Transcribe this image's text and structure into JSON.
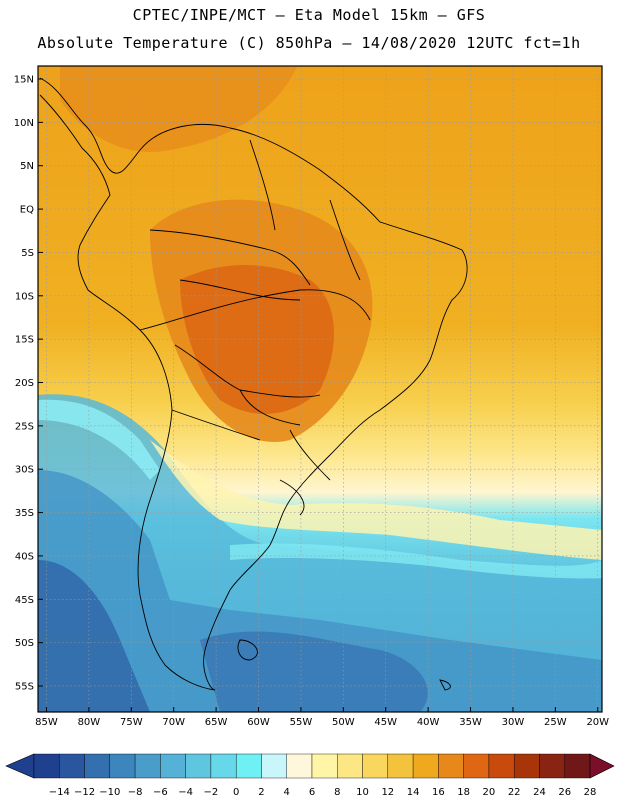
{
  "title_line1": "CPTEC/INPE/MCT –  Eta Model 15km – GFS",
  "title_line2": "Absolute Temperature (C) 850hPa – 14/08/2020 12UTC fct=1h",
  "lat_labels": [
    "15N",
    "10N",
    "5N",
    "EQ",
    "5S",
    "10S",
    "15S",
    "20S",
    "25S",
    "30S",
    "35S",
    "40S",
    "45S",
    "50S",
    "55S"
  ],
  "lat_values": [
    15,
    10,
    5,
    0,
    -5,
    -10,
    -15,
    -20,
    -25,
    -30,
    -35,
    -40,
    -45,
    -50,
    -55
  ],
  "lon_labels": [
    "85W",
    "80W",
    "75W",
    "70W",
    "65W",
    "60W",
    "55W",
    "50W",
    "45W",
    "40W",
    "35W",
    "30W",
    "25W",
    "20W"
  ],
  "lon_values": [
    -85,
    -80,
    -75,
    -70,
    -65,
    -60,
    -55,
    -50,
    -45,
    -40,
    -35,
    -30,
    -25,
    -20
  ],
  "colorbar": {
    "labels": [
      "-14",
      "-12",
      "-10",
      "-8",
      "-6",
      "-4",
      "-2",
      "0",
      "2",
      "4",
      "6",
      "8",
      "10",
      "12",
      "14",
      "16",
      "18",
      "20",
      "22",
      "24",
      "26",
      "28"
    ],
    "colors": [
      "#1f3f8f",
      "#2a56a0",
      "#3470b0",
      "#3d86bd",
      "#4a9cc9",
      "#55b2d6",
      "#5fc6e0",
      "#66d8ea",
      "#6ff0f5",
      "#c8f6fb",
      "#fff7dc",
      "#fff5a6",
      "#fde784",
      "#f9d65e",
      "#f4c33d",
      "#efa91f",
      "#e8881a",
      "#df6612",
      "#c84a0c",
      "#a8340a",
      "#8a2412",
      "#701818"
    ]
  },
  "map": {
    "lon_min": -86,
    "lon_max": -19.5,
    "lat_min": -58,
    "lat_max": 16.5,
    "gridlines": true
  }
}
